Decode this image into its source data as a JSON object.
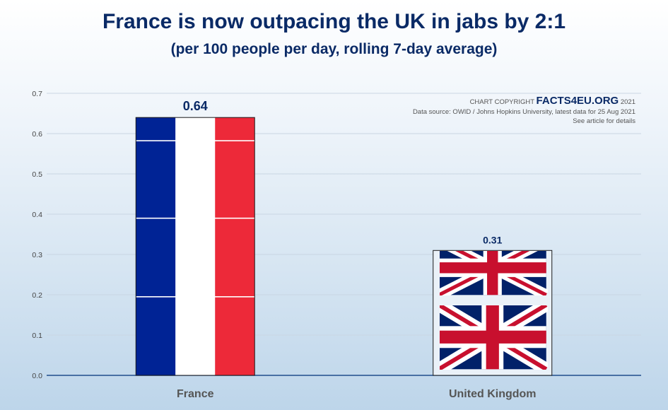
{
  "chart_data": {
    "type": "bar",
    "title": "France is now outpacing the UK in jabs by 2:1",
    "subtitle": "(per 100 people per day, rolling 7-day average)",
    "categories": [
      "France",
      "United Kingdom"
    ],
    "values": [
      0.64,
      0.31
    ],
    "value_labels": [
      "0.64",
      "0.31"
    ],
    "ylim": [
      0,
      0.7
    ],
    "yticks": [
      "0.0",
      "0.1",
      "0.2",
      "0.3",
      "0.4",
      "0.5",
      "0.6",
      "0.7"
    ],
    "xlabel": "",
    "ylabel": "",
    "grid": "horizontal",
    "bar_fills": [
      "french-flag",
      "union-jack"
    ]
  },
  "credit": {
    "copyright_prefix": "CHART COPYRIGHT",
    "brand": "FACTS4EU.ORG",
    "year": "2021",
    "source": "Data source: OWID / Johns Hopkins University, latest data for 25 Aug 2021",
    "note": "See article for details"
  },
  "colors": {
    "title": "#0a2a66",
    "france_blue": "#002395",
    "france_white": "#ffffff",
    "france_red": "#ED2939",
    "uk_blue": "#012169",
    "uk_red": "#C8102E",
    "gridline": "#c9d6e3",
    "axis": "#1f4e8c"
  }
}
